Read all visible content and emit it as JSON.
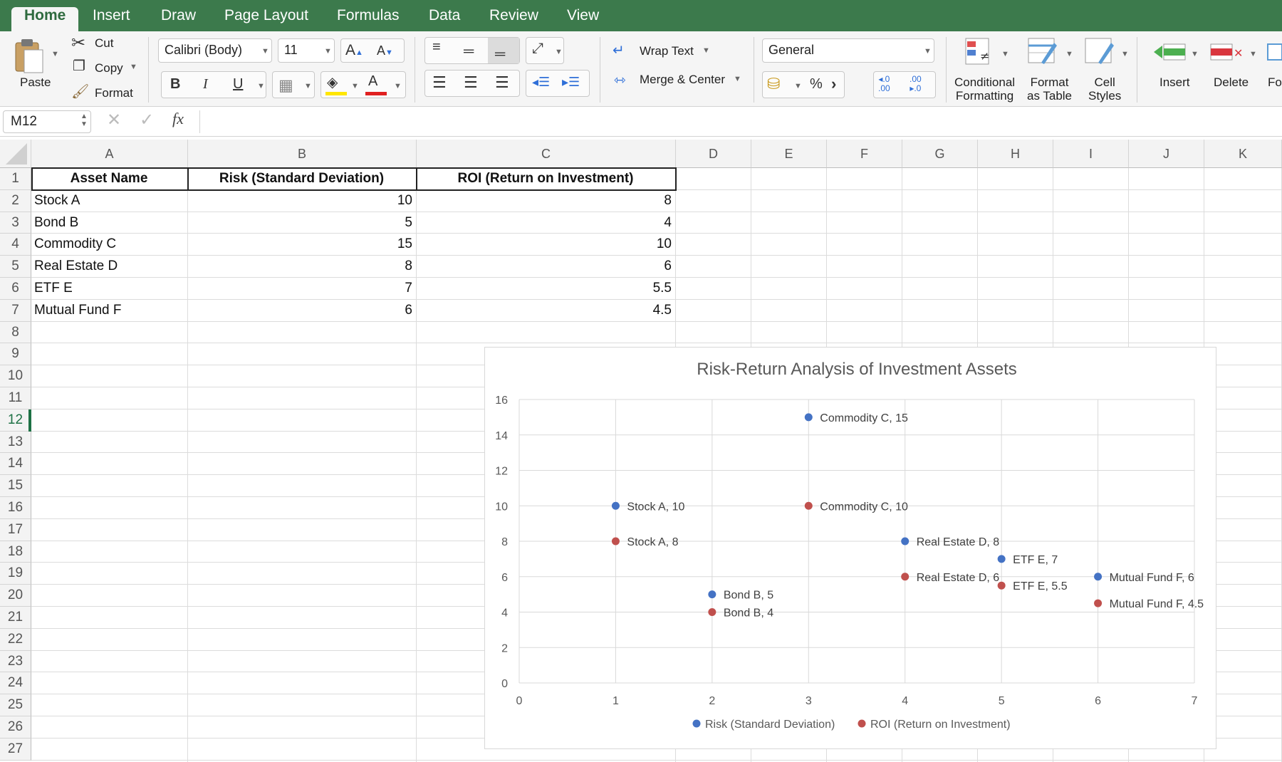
{
  "ribbon_tabs": [
    "Home",
    "Insert",
    "Draw",
    "Page Layout",
    "Formulas",
    "Data",
    "Review",
    "View"
  ],
  "active_tab": "Home",
  "clipboard": {
    "paste": "Paste",
    "cut": "Cut",
    "copy": "Copy",
    "format": "Format"
  },
  "font": {
    "name": "Calibri (Body)",
    "size": "11"
  },
  "alignment": {
    "wrap_text": "Wrap Text",
    "merge_center": "Merge & Center"
  },
  "number": {
    "format": "General"
  },
  "styles": {
    "conditional": [
      "Conditional",
      "Formatting"
    ],
    "format_table": [
      "Format",
      "as Table"
    ],
    "cell_styles": [
      "Cell",
      "Styles"
    ]
  },
  "cells_group": {
    "insert": "Insert",
    "delete": "Delete",
    "format_cut": "Fo"
  },
  "name_box": "M12",
  "fx": "fx",
  "columns": [
    "A",
    "B",
    "C",
    "D",
    "E",
    "F",
    "G",
    "H",
    "I",
    "J",
    "K"
  ],
  "rows": [
    "1",
    "2",
    "3",
    "4",
    "5",
    "6",
    "7",
    "8",
    "9",
    "10",
    "11",
    "12",
    "13",
    "14",
    "15",
    "16",
    "17",
    "18",
    "19",
    "20",
    "21",
    "22",
    "23",
    "24",
    "25",
    "26",
    "27"
  ],
  "active_row": "12",
  "table": {
    "headers": [
      "Asset Name",
      "Risk (Standard Deviation)",
      "ROI (Return on Investment)"
    ],
    "rows": [
      [
        "Stock A",
        "10",
        "8"
      ],
      [
        "Bond B",
        "5",
        "4"
      ],
      [
        "Commodity C",
        "15",
        "10"
      ],
      [
        "Real Estate D",
        "8",
        "6"
      ],
      [
        "ETF E",
        "7",
        "5.5"
      ],
      [
        "Mutual Fund F",
        "6",
        "4.5"
      ]
    ]
  },
  "chart_data": {
    "type": "scatter",
    "title": "Risk-Return Analysis of Investment Assets",
    "xlabel": "",
    "ylabel": "",
    "xlim": [
      0,
      7
    ],
    "ylim": [
      0,
      16
    ],
    "x_ticks": [
      "0",
      "1",
      "2",
      "3",
      "4",
      "5",
      "6",
      "7"
    ],
    "y_ticks": [
      "0",
      "2",
      "4",
      "6",
      "8",
      "10",
      "12",
      "14",
      "16"
    ],
    "grid": true,
    "legend_position": "bottom",
    "series": [
      {
        "name": "Risk (Standard Deviation)",
        "color": "#4472c4",
        "x": [
          1,
          2,
          3,
          4,
          5,
          6
        ],
        "y": [
          10,
          5,
          15,
          8,
          7,
          6
        ],
        "labels": [
          "Stock A, 10",
          "Bond B, 5",
          "Commodity C, 15",
          "Real Estate D, 8",
          "ETF E, 7",
          "Mutual Fund F, 6"
        ]
      },
      {
        "name": "ROI (Return on Investment)",
        "color": "#c0504d",
        "x": [
          1,
          2,
          3,
          4,
          5,
          6
        ],
        "y": [
          8,
          4,
          10,
          6,
          5.5,
          4.5
        ],
        "labels": [
          "Stock A, 8",
          "Bond B, 4",
          "Commodity C, 10",
          "Real Estate D, 6",
          "ETF E, 5.5",
          "Mutual Fund F, 4.5"
        ]
      }
    ]
  }
}
